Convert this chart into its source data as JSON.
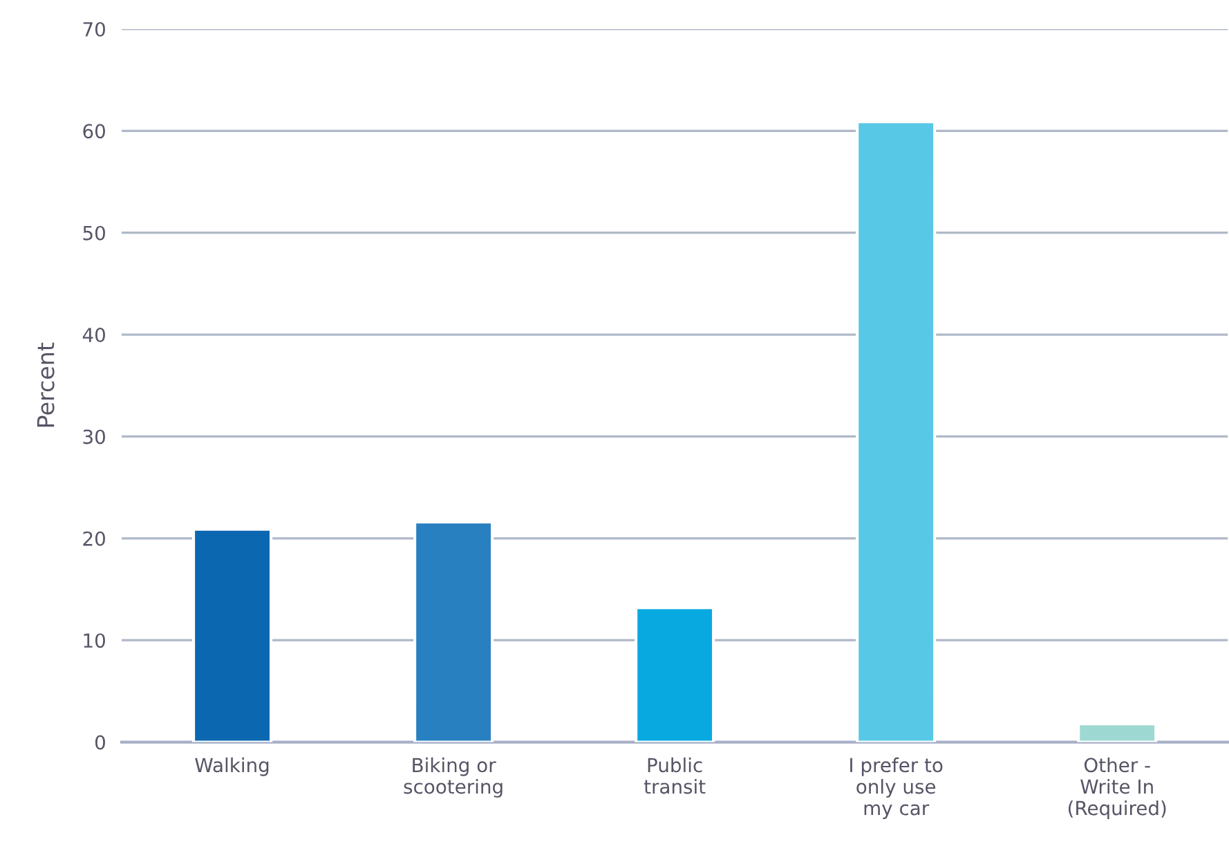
{
  "chart_data": {
    "type": "bar",
    "ylabel": "Percent",
    "categories": [
      "Walking",
      "Biking or\nscootering",
      "Public\ntransit",
      "I prefer to\nonly use\nmy car",
      "Other -\nWrite In\n(Required)"
    ],
    "values": [
      20.9,
      21.6,
      13.2,
      60.9,
      1.8
    ],
    "colors": [
      "#0c67b1",
      "#2880c0",
      "#08a9e0",
      "#57c8e5",
      "#9dd9d2"
    ],
    "ylim": [
      0,
      70
    ],
    "yticks": [
      0,
      10,
      20,
      30,
      40,
      50,
      60,
      70
    ],
    "grid": "y"
  }
}
